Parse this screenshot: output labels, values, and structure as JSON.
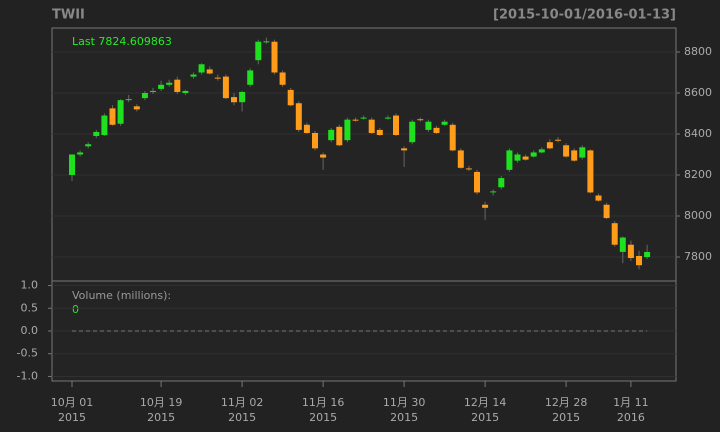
{
  "chart_data": {
    "type": "candlestick",
    "title": "TWII",
    "subtitle": "[2015-10-01/2016-01-13]",
    "annotation": "Last 7824.609863",
    "up_color": "#1ee01e",
    "down_color": "#ff9c1a",
    "grid": true,
    "ylim": [
      7683,
      8917
    ],
    "yticks": [
      7800,
      8000,
      8200,
      8400,
      8600,
      8800
    ],
    "categories": [
      "10月 01\n2015",
      null,
      null,
      null,
      null,
      null,
      null,
      null,
      null,
      null,
      null,
      "10月 19\n2015",
      null,
      null,
      null,
      null,
      null,
      null,
      null,
      null,
      null,
      "11月 02\n2015",
      null,
      null,
      null,
      null,
      null,
      null,
      null,
      null,
      null,
      "11月 16\n2015",
      null,
      null,
      null,
      null,
      null,
      null,
      null,
      null,
      null,
      "11月 30\n2015",
      null,
      null,
      null,
      null,
      null,
      null,
      null,
      null,
      null,
      "12月 14\n2015",
      null,
      null,
      null,
      null,
      null,
      null,
      null,
      null,
      null,
      "12月 28\n2015",
      null,
      null,
      null,
      null,
      null,
      null,
      null,
      "1月 11\n2016",
      null,
      null
    ],
    "open": [
      8200,
      8300,
      8340,
      8390,
      8395,
      8525,
      8450,
      8565,
      8535,
      8575,
      8605,
      8620,
      8640,
      8665,
      8600,
      8680,
      8700,
      8715,
      8675,
      8680,
      8580,
      8555,
      8640,
      8760,
      8850,
      8850,
      8700,
      8615,
      8550,
      8445,
      8405,
      8300,
      8370,
      8435,
      8370,
      8470,
      8475,
      8470,
      8420,
      8475,
      8490,
      8330,
      8360,
      8472,
      8420,
      8430,
      8445,
      8445,
      8320,
      8232,
      8215,
      8055,
      8118,
      8140,
      8225,
      8270,
      8290,
      8290,
      8310,
      8360,
      8372,
      8345,
      8320,
      8285,
      8320,
      8100,
      8055,
      7965,
      7825,
      7860,
      7805,
      7800
    ],
    "high": [
      8300,
      8320,
      8360,
      8420,
      8500,
      8540,
      8570,
      8590,
      8545,
      8610,
      8625,
      8660,
      8665,
      8680,
      8615,
      8700,
      8745,
      8730,
      8690,
      8690,
      8600,
      8610,
      8720,
      8860,
      8870,
      8860,
      8710,
      8625,
      8560,
      8455,
      8415,
      8310,
      8430,
      8445,
      8480,
      8480,
      8490,
      8480,
      8430,
      8490,
      8500,
      8340,
      8470,
      8480,
      8470,
      8440,
      8470,
      8455,
      8330,
      8245,
      8225,
      8070,
      8130,
      8195,
      8330,
      8310,
      8300,
      8320,
      8335,
      8375,
      8385,
      8355,
      8330,
      8345,
      8325,
      8110,
      8065,
      7975,
      7900,
      7880,
      7830,
      7860
    ],
    "low": [
      8170,
      8290,
      8330,
      8380,
      8390,
      8440,
      8440,
      8555,
      8510,
      8565,
      8595,
      8610,
      8630,
      8595,
      8590,
      8670,
      8690,
      8690,
      8660,
      8570,
      8540,
      8510,
      8630,
      8740,
      8840,
      8690,
      8630,
      8535,
      8410,
      8400,
      8320,
      8225,
      8360,
      8340,
      8360,
      8460,
      8470,
      8400,
      8390,
      8470,
      8390,
      8240,
      8350,
      8460,
      8410,
      8400,
      8440,
      8315,
      8230,
      8220,
      8105,
      7980,
      8100,
      8130,
      8215,
      8260,
      8270,
      8285,
      8305,
      8325,
      8360,
      8285,
      8265,
      8275,
      8110,
      8070,
      7985,
      7850,
      7770,
      7780,
      7740,
      7790
    ],
    "close": [
      8300,
      8310,
      8350,
      8410,
      8490,
      8445,
      8565,
      8570,
      8520,
      8600,
      8610,
      8640,
      8650,
      8605,
      8610,
      8690,
      8740,
      8695,
      8670,
      8575,
      8555,
      8605,
      8710,
      8850,
      8852,
      8700,
      8640,
      8540,
      8420,
      8405,
      8330,
      8285,
      8420,
      8345,
      8470,
      8465,
      8480,
      8405,
      8395,
      8480,
      8395,
      8320,
      8460,
      8468,
      8460,
      8405,
      8460,
      8320,
      8235,
      8228,
      8115,
      8040,
      8120,
      8185,
      8320,
      8300,
      8275,
      8310,
      8325,
      8330,
      8368,
      8290,
      8270,
      8335,
      8115,
      8075,
      7990,
      7860,
      7895,
      7795,
      7760,
      7824.609863
    ],
    "volume": {
      "label": "Volume (millions):",
      "last": 0,
      "ylim": [
        -1.1,
        1.1
      ],
      "yticks": [
        {
          "value": -1,
          "label": "-1.0"
        },
        {
          "value": -0.5,
          "label": "-0.5"
        },
        {
          "value": 0,
          "label": "0.0"
        },
        {
          "value": 0.5,
          "label": "0.5"
        },
        {
          "value": 1,
          "label": "1.0"
        }
      ],
      "values": [
        0,
        0,
        0,
        0,
        0,
        0,
        0,
        0,
        0,
        0,
        0,
        0,
        0,
        0,
        0,
        0,
        0,
        0,
        0,
        0,
        0,
        0,
        0,
        0,
        0,
        0,
        0,
        0,
        0,
        0,
        0,
        0,
        0,
        0,
        0,
        0,
        0,
        0,
        0,
        0,
        0,
        0,
        0,
        0,
        0,
        0,
        0,
        0,
        0,
        0,
        0,
        0,
        0,
        0,
        0,
        0,
        0,
        0,
        0,
        0,
        0,
        0,
        0,
        0,
        0,
        0,
        0,
        0,
        0,
        0,
        0,
        0
      ]
    }
  }
}
